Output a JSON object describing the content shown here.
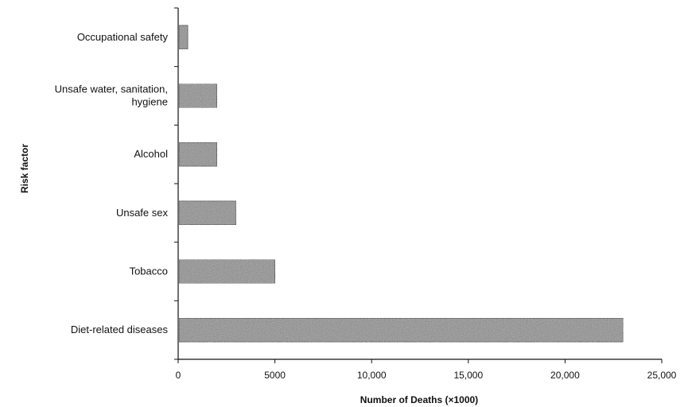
{
  "chart_data": {
    "type": "bar",
    "orientation": "horizontal",
    "title": "",
    "xlabel": "Number of Deaths (×1000)",
    "ylabel": "Risk factor",
    "xlim": [
      0,
      25000
    ],
    "xticks": [
      0,
      5000,
      10000,
      15000,
      20000,
      25000
    ],
    "xtick_labels": [
      "0",
      "5000",
      "10,000",
      "15,000",
      "20,000",
      "25,000"
    ],
    "categories": [
      [
        "Occupational safety"
      ],
      [
        "Unsafe water, sanitation,",
        "hygiene"
      ],
      [
        "Alcohol"
      ],
      [
        "Unsafe sex"
      ],
      [
        "Tobacco"
      ],
      [
        "Diet-related diseases"
      ]
    ],
    "values": [
      500,
      2000,
      2000,
      3000,
      5000,
      23000
    ],
    "grid": false,
    "bar_color": "#8c8c8c"
  }
}
